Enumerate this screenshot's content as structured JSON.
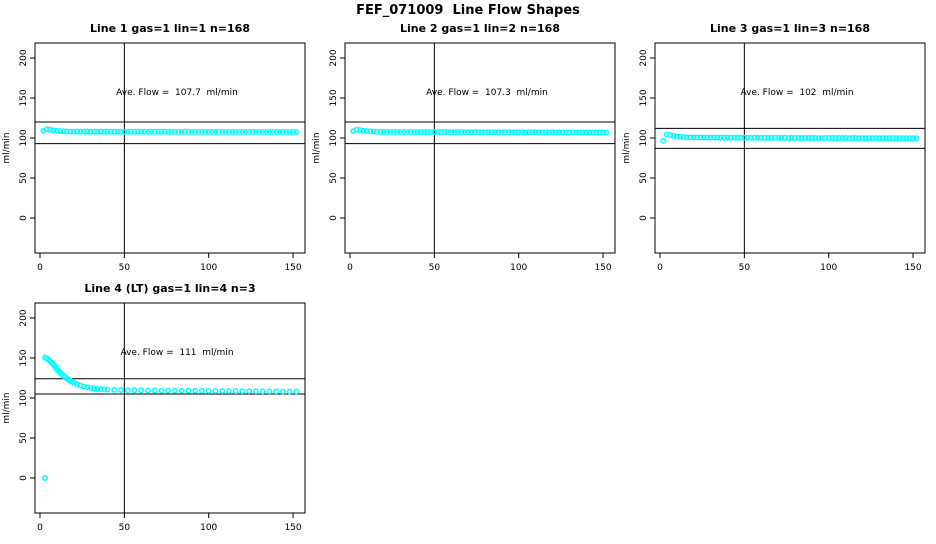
{
  "page_title": "FEF_071009  Line Flow Shapes",
  "colors": {
    "point": "#00ffff",
    "axis": "#000000",
    "background": "#ffffff"
  },
  "chart_data": [
    {
      "type": "scatter",
      "title": "Line 1 gas=1 lin=1 n=168",
      "annotation": "Ave. Flow =  107.7  ml/min",
      "ave_flow": 107.7,
      "ylabel": "ml/min",
      "xlabel": "",
      "x_ticks": [
        0,
        50,
        100,
        150
      ],
      "y_ticks": [
        0,
        50,
        100,
        150,
        200
      ],
      "xlim": [
        -3,
        160
      ],
      "ylim": [
        -44,
        219
      ],
      "vline_x": 50,
      "hlines": [
        120,
        93
      ],
      "grid": false,
      "legend": "none",
      "points": [
        [
          2,
          109.0
        ],
        [
          4,
          110.8
        ],
        [
          6,
          110.3
        ],
        [
          8,
          109.6
        ],
        [
          10,
          109.0
        ],
        [
          12,
          108.6
        ],
        [
          14,
          108.3
        ],
        [
          16,
          108.1
        ],
        [
          18,
          108.0
        ],
        [
          20,
          107.9
        ],
        [
          22,
          108.1
        ],
        [
          24,
          107.8
        ],
        [
          26,
          107.9
        ],
        [
          28,
          108.0
        ],
        [
          30,
          107.7
        ],
        [
          32,
          107.9
        ],
        [
          34,
          107.8
        ],
        [
          36,
          108.0
        ],
        [
          38,
          107.7
        ],
        [
          40,
          107.9
        ],
        [
          42,
          107.8
        ],
        [
          44,
          107.7
        ],
        [
          46,
          107.9
        ],
        [
          48,
          107.8
        ],
        [
          50,
          107.7
        ],
        [
          52,
          107.9
        ],
        [
          54,
          107.7
        ],
        [
          56,
          107.8
        ],
        [
          58,
          107.9
        ],
        [
          60,
          107.7
        ],
        [
          62,
          107.8
        ],
        [
          64,
          107.6
        ],
        [
          66,
          107.9
        ],
        [
          68,
          107.7
        ],
        [
          70,
          107.8
        ],
        [
          72,
          107.7
        ],
        [
          74,
          107.9
        ],
        [
          76,
          107.6
        ],
        [
          78,
          107.8
        ],
        [
          80,
          107.7
        ],
        [
          82,
          107.8
        ],
        [
          84,
          107.6
        ],
        [
          86,
          107.8
        ],
        [
          88,
          107.7
        ],
        [
          90,
          107.6
        ],
        [
          92,
          107.8
        ],
        [
          94,
          107.7
        ],
        [
          96,
          107.6
        ],
        [
          98,
          107.8
        ],
        [
          100,
          107.6
        ],
        [
          102,
          107.7
        ],
        [
          104,
          107.5
        ],
        [
          106,
          107.7
        ],
        [
          108,
          107.6
        ],
        [
          110,
          107.7
        ],
        [
          112,
          107.5
        ],
        [
          114,
          107.6
        ],
        [
          116,
          107.7
        ],
        [
          118,
          107.5
        ],
        [
          120,
          107.6
        ],
        [
          122,
          107.5
        ],
        [
          124,
          107.7
        ],
        [
          126,
          107.5
        ],
        [
          128,
          107.6
        ],
        [
          130,
          107.4
        ],
        [
          132,
          107.6
        ],
        [
          134,
          107.5
        ],
        [
          136,
          107.4
        ],
        [
          138,
          107.6
        ],
        [
          140,
          107.4
        ],
        [
          142,
          107.5
        ],
        [
          144,
          107.4
        ],
        [
          146,
          107.5
        ],
        [
          148,
          107.4
        ],
        [
          150,
          107.5
        ],
        [
          152,
          107.4
        ]
      ]
    },
    {
      "type": "scatter",
      "title": "Line 2 gas=1 lin=2 n=168",
      "annotation": "Ave. Flow =  107.3  ml/min",
      "ave_flow": 107.3,
      "ylabel": "ml/min",
      "xlabel": "",
      "x_ticks": [
        0,
        50,
        100,
        150
      ],
      "y_ticks": [
        0,
        50,
        100,
        150,
        200
      ],
      "xlim": [
        -3,
        160
      ],
      "ylim": [
        -44,
        219
      ],
      "vline_x": 50,
      "hlines": [
        120,
        93
      ],
      "grid": false,
      "legend": "none",
      "points": [
        [
          2,
          108.5
        ],
        [
          4,
          110.4
        ],
        [
          6,
          109.9
        ],
        [
          8,
          109.2
        ],
        [
          10,
          108.6
        ],
        [
          12,
          108.2
        ],
        [
          14,
          107.9
        ],
        [
          16,
          107.7
        ],
        [
          18,
          107.6
        ],
        [
          20,
          107.5
        ],
        [
          22,
          107.6
        ],
        [
          24,
          107.4
        ],
        [
          26,
          107.5
        ],
        [
          28,
          107.6
        ],
        [
          30,
          107.3
        ],
        [
          32,
          107.5
        ],
        [
          34,
          107.4
        ],
        [
          36,
          107.5
        ],
        [
          38,
          107.3
        ],
        [
          40,
          107.4
        ],
        [
          42,
          107.3
        ],
        [
          44,
          107.3
        ],
        [
          46,
          107.4
        ],
        [
          48,
          107.3
        ],
        [
          50,
          107.3
        ],
        [
          52,
          107.4
        ],
        [
          54,
          107.2
        ],
        [
          56,
          107.3
        ],
        [
          58,
          107.4
        ],
        [
          60,
          107.2
        ],
        [
          62,
          107.3
        ],
        [
          64,
          107.2
        ],
        [
          66,
          107.4
        ],
        [
          68,
          107.2
        ],
        [
          70,
          107.3
        ],
        [
          72,
          107.2
        ],
        [
          74,
          107.4
        ],
        [
          76,
          107.1
        ],
        [
          78,
          107.3
        ],
        [
          80,
          107.2
        ],
        [
          82,
          107.3
        ],
        [
          84,
          107.1
        ],
        [
          86,
          107.3
        ],
        [
          88,
          107.2
        ],
        [
          90,
          107.1
        ],
        [
          92,
          107.3
        ],
        [
          94,
          107.2
        ],
        [
          96,
          107.1
        ],
        [
          98,
          107.2
        ],
        [
          100,
          107.1
        ],
        [
          102,
          107.2
        ],
        [
          104,
          107.0
        ],
        [
          106,
          107.2
        ],
        [
          108,
          107.1
        ],
        [
          110,
          107.2
        ],
        [
          112,
          107.0
        ],
        [
          114,
          107.1
        ],
        [
          116,
          107.2
        ],
        [
          118,
          107.0
        ],
        [
          120,
          107.1
        ],
        [
          122,
          107.0
        ],
        [
          124,
          107.1
        ],
        [
          126,
          107.0
        ],
        [
          128,
          107.1
        ],
        [
          130,
          106.9
        ],
        [
          132,
          107.1
        ],
        [
          134,
          107.0
        ],
        [
          136,
          106.9
        ],
        [
          138,
          107.0
        ],
        [
          140,
          106.9
        ],
        [
          142,
          107.0
        ],
        [
          144,
          106.9
        ],
        [
          146,
          107.0
        ],
        [
          148,
          106.9
        ],
        [
          150,
          106.9
        ],
        [
          152,
          106.8
        ]
      ]
    },
    {
      "type": "scatter",
      "title": "Line 3 gas=1 lin=3 n=168",
      "annotation": "Ave. Flow =  102  ml/min",
      "ave_flow": 102,
      "ylabel": "ml/min",
      "xlabel": "",
      "x_ticks": [
        0,
        50,
        100,
        150
      ],
      "y_ticks": [
        0,
        50,
        100,
        150,
        200
      ],
      "xlim": [
        -3,
        160
      ],
      "ylim": [
        -44,
        219
      ],
      "vline_x": 50,
      "hlines": [
        112,
        87
      ],
      "grid": false,
      "legend": "none",
      "points": [
        [
          2,
          96.5
        ],
        [
          4,
          104.3
        ],
        [
          6,
          103.6
        ],
        [
          8,
          102.8
        ],
        [
          10,
          102.1
        ],
        [
          12,
          101.6
        ],
        [
          14,
          101.2
        ],
        [
          16,
          100.9
        ],
        [
          18,
          100.7
        ],
        [
          20,
          100.6
        ],
        [
          22,
          100.7
        ],
        [
          24,
          100.5
        ],
        [
          26,
          100.6
        ],
        [
          28,
          100.5
        ],
        [
          30,
          100.4
        ],
        [
          32,
          100.5
        ],
        [
          34,
          100.4
        ],
        [
          36,
          100.5
        ],
        [
          38,
          100.3
        ],
        [
          40,
          100.4
        ],
        [
          42,
          100.4
        ],
        [
          44,
          100.3
        ],
        [
          46,
          100.4
        ],
        [
          48,
          100.3
        ],
        [
          50,
          100.3
        ],
        [
          52,
          100.4
        ],
        [
          54,
          100.2
        ],
        [
          56,
          100.3
        ],
        [
          58,
          100.3
        ],
        [
          60,
          100.2
        ],
        [
          62,
          100.3
        ],
        [
          64,
          100.1
        ],
        [
          66,
          100.3
        ],
        [
          68,
          100.2
        ],
        [
          70,
          100.2
        ],
        [
          72,
          100.1
        ],
        [
          74,
          100.3
        ],
        [
          76,
          100.0
        ],
        [
          78,
          100.2
        ],
        [
          80,
          100.1
        ],
        [
          82,
          100.1
        ],
        [
          84,
          100.0
        ],
        [
          86,
          100.1
        ],
        [
          88,
          100.0
        ],
        [
          90,
          100.0
        ],
        [
          92,
          100.1
        ],
        [
          94,
          100.0
        ],
        [
          96,
          99.9
        ],
        [
          98,
          100.1
        ],
        [
          100,
          99.9
        ],
        [
          102,
          100.0
        ],
        [
          104,
          99.9
        ],
        [
          106,
          100.0
        ],
        [
          108,
          99.9
        ],
        [
          110,
          100.0
        ],
        [
          112,
          99.8
        ],
        [
          114,
          99.9
        ],
        [
          116,
          100.0
        ],
        [
          118,
          99.8
        ],
        [
          120,
          99.9
        ],
        [
          122,
          99.8
        ],
        [
          124,
          99.9
        ],
        [
          126,
          99.8
        ],
        [
          128,
          99.9
        ],
        [
          130,
          99.7
        ],
        [
          132,
          99.9
        ],
        [
          134,
          99.8
        ],
        [
          136,
          99.7
        ],
        [
          138,
          99.9
        ],
        [
          140,
          99.7
        ],
        [
          142,
          99.8
        ],
        [
          144,
          99.7
        ],
        [
          146,
          99.8
        ],
        [
          148,
          99.7
        ],
        [
          150,
          99.8
        ],
        [
          152,
          99.7
        ]
      ]
    },
    {
      "type": "scatter",
      "title": "Line 4 (LT) gas=1 lin=4 n=3",
      "annotation": "Ave. Flow =  111  ml/min",
      "ave_flow": 111,
      "ylabel": "ml/min",
      "xlabel": "",
      "x_ticks": [
        0,
        50,
        100,
        150
      ],
      "y_ticks": [
        0,
        50,
        100,
        150,
        200
      ],
      "xlim": [
        -3,
        160
      ],
      "ylim": [
        -44,
        219
      ],
      "vline_x": 50,
      "hlines": [
        124,
        105
      ],
      "grid": false,
      "legend": "none",
      "points": [
        [
          3,
          0
        ],
        [
          3,
          150.5
        ],
        [
          4,
          149.5
        ],
        [
          5,
          148.0
        ],
        [
          6,
          146.0
        ],
        [
          7,
          143.8
        ],
        [
          8,
          141.5
        ],
        [
          9,
          139.0
        ],
        [
          10,
          136.5
        ],
        [
          11,
          134.0
        ],
        [
          12,
          131.8
        ],
        [
          13,
          129.8
        ],
        [
          14,
          127.8
        ],
        [
          15,
          126.0
        ],
        [
          16,
          124.3
        ],
        [
          17,
          122.8
        ],
        [
          18,
          121.4
        ],
        [
          19,
          120.2
        ],
        [
          20,
          119.1
        ],
        [
          22,
          117.2
        ],
        [
          24,
          115.6
        ],
        [
          26,
          114.3
        ],
        [
          28,
          113.3
        ],
        [
          30,
          112.5
        ],
        [
          32,
          111.9
        ],
        [
          34,
          111.4
        ],
        [
          36,
          111.0
        ],
        [
          38,
          110.7
        ],
        [
          40,
          110.5
        ],
        [
          44,
          110.2
        ],
        [
          48,
          110.0
        ],
        [
          52,
          109.8
        ],
        [
          56,
          109.7
        ],
        [
          60,
          109.6
        ],
        [
          64,
          109.5
        ],
        [
          68,
          109.4
        ],
        [
          72,
          109.3
        ],
        [
          76,
          109.3
        ],
        [
          80,
          109.2
        ],
        [
          84,
          109.1
        ],
        [
          88,
          109.1
        ],
        [
          92,
          109.0
        ],
        [
          96,
          108.9
        ],
        [
          100,
          108.9
        ],
        [
          104,
          108.8
        ],
        [
          108,
          108.7
        ],
        [
          112,
          108.7
        ],
        [
          116,
          108.6
        ],
        [
          120,
          108.5
        ],
        [
          124,
          108.5
        ],
        [
          128,
          108.4
        ],
        [
          132,
          108.3
        ],
        [
          136,
          108.3
        ],
        [
          140,
          108.2
        ],
        [
          144,
          108.1
        ],
        [
          148,
          108.1
        ],
        [
          152,
          108.0
        ]
      ]
    }
  ]
}
